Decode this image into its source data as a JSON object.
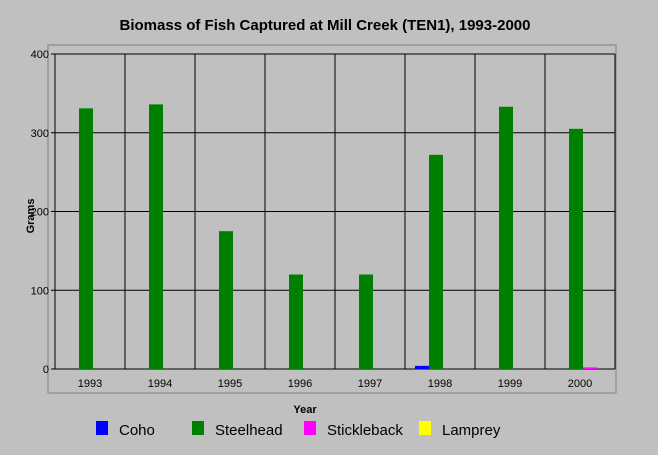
{
  "chart_data": {
    "type": "bar",
    "title": "Biomass of Fish Captured at Mill Creek (TEN1), 1993-2000",
    "xlabel": "Year",
    "ylabel": "Grams",
    "ylim": [
      0,
      400
    ],
    "yticks": [
      0,
      100,
      200,
      300,
      400
    ],
    "grid": true,
    "legend": "bottom",
    "categories": [
      "1993",
      "1994",
      "1995",
      "1996",
      "1997",
      "1998",
      "1999",
      "2000"
    ],
    "series": [
      {
        "name": "Coho",
        "color": "#0000ff",
        "values": [
          0,
          0,
          0,
          0,
          0,
          4,
          0,
          0
        ]
      },
      {
        "name": "Steelhead",
        "color": "#008000",
        "values": [
          331,
          336,
          175,
          120,
          120,
          272,
          333,
          305
        ]
      },
      {
        "name": "Stickleback",
        "color": "#ff00ff",
        "values": [
          0,
          0,
          0,
          0,
          0,
          0,
          0,
          2
        ]
      },
      {
        "name": "Lamprey",
        "color": "#ffff00",
        "values": [
          0,
          0,
          0,
          0,
          0,
          0,
          0,
          0
        ]
      }
    ]
  }
}
